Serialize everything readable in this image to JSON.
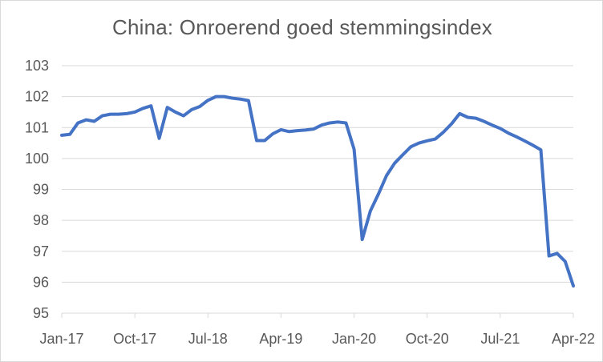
{
  "chart_data": {
    "type": "line",
    "title": "China: Onroerend goed stemmingsindex",
    "xlabel": "",
    "ylabel": "",
    "ylim": [
      95,
      103
    ],
    "yticks": [
      95,
      96,
      97,
      98,
      99,
      100,
      101,
      102,
      103
    ],
    "grid": true,
    "legend": "none",
    "x_tick_labels": [
      "Jan-17",
      "Oct-17",
      "Jul-18",
      "Apr-19",
      "Jan-20",
      "Oct-20",
      "Jul-21",
      "Apr-22"
    ],
    "x_start": "Jan-17",
    "x_end": "Apr-22",
    "colors": {
      "series": "#4472c4",
      "grid": "#d9d9d9",
      "text": "#595959"
    },
    "series": [
      {
        "x": [
          "Jan-17",
          "Feb-17",
          "Mar-17",
          "Apr-17",
          "May-17",
          "Jun-17",
          "Jul-17",
          "Aug-17",
          "Sep-17",
          "Oct-17",
          "Nov-17",
          "Dec-17",
          "Jan-18",
          "Feb-18",
          "Mar-18",
          "Apr-18",
          "May-18",
          "Jun-18",
          "Jul-18",
          "Aug-18",
          "Sep-18",
          "Oct-18",
          "Nov-18",
          "Dec-18",
          "Jan-19",
          "Feb-19",
          "Mar-19",
          "Apr-19",
          "May-19",
          "Jun-19",
          "Jul-19",
          "Aug-19",
          "Sep-19",
          "Oct-19",
          "Nov-19",
          "Dec-19",
          "Jan-20",
          "Feb-20",
          "Mar-20",
          "Apr-20",
          "May-20",
          "Jun-20",
          "Jul-20",
          "Aug-20",
          "Sep-20",
          "Oct-20",
          "Nov-20",
          "Dec-20",
          "Jan-21",
          "Feb-21",
          "Mar-21",
          "Apr-21",
          "May-21",
          "Jun-21",
          "Jul-21",
          "Aug-21",
          "Sep-21",
          "Oct-21",
          "Nov-21",
          "Dec-21",
          "Jan-22",
          "Feb-22",
          "Mar-22",
          "Apr-22"
        ],
        "values": [
          100.75,
          100.78,
          101.15,
          101.25,
          101.2,
          101.38,
          101.43,
          101.43,
          101.45,
          101.5,
          101.62,
          101.7,
          100.65,
          101.65,
          101.5,
          101.38,
          101.58,
          101.68,
          101.88,
          102.0,
          102.0,
          101.95,
          101.92,
          101.87,
          100.58,
          100.58,
          100.8,
          100.93,
          100.87,
          100.9,
          100.92,
          100.95,
          101.08,
          101.15,
          101.18,
          101.15,
          100.3,
          97.38,
          98.3,
          98.85,
          99.45,
          99.85,
          100.12,
          100.38,
          100.5,
          100.57,
          100.63,
          100.85,
          101.12,
          101.45,
          101.33,
          101.3,
          101.2,
          101.08,
          100.97,
          100.82,
          100.7,
          100.57,
          100.43,
          100.28,
          96.85,
          96.93,
          96.67,
          95.88
        ]
      }
    ]
  }
}
